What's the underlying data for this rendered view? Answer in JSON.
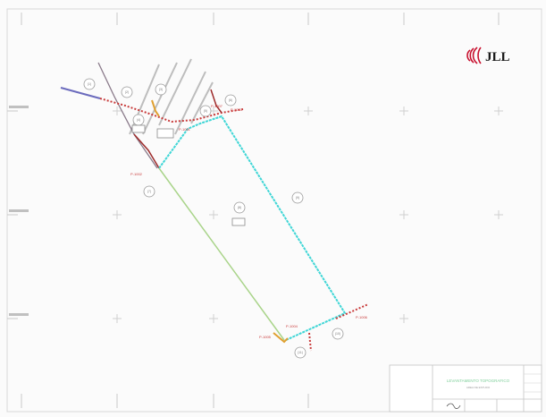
{
  "logo": {
    "text": "JLL",
    "color": "#c8102e"
  },
  "parcel_labels": [
    "(1)",
    "(2)",
    "(3)",
    "(4)",
    "(5)",
    "(6)",
    "(7)",
    "(8)",
    "(9)",
    "(10)",
    "(11)",
    "(12)",
    "(13)"
  ],
  "point_labels": [
    "P-1001",
    "P-1002",
    "P-1003",
    "P-1004",
    "P-1005",
    "P-1006",
    "P-1007"
  ],
  "colors": {
    "cyan_boundary": "#3fd6d6",
    "red_dotted": "#c83a3a",
    "dark_red": "#9e2c2c",
    "green_boundary": "#a9d48a",
    "blue_road": "#6b6bbd",
    "road_gray": "#b9b9b9",
    "title_green": "#7fcf9a"
  },
  "title_block": {
    "title": "LEVANTAMENTO TOPOGRAFICO",
    "subtitle": "AREA DE ESTUDO"
  }
}
